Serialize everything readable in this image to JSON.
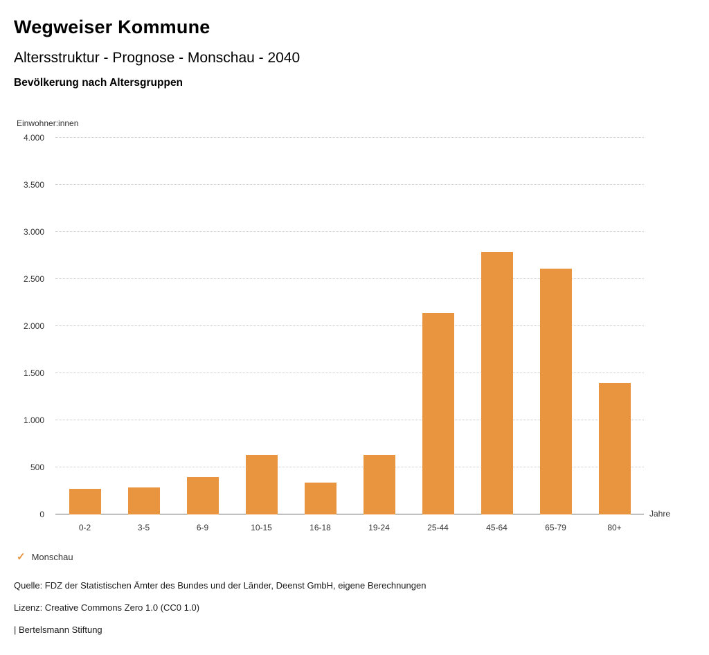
{
  "header": {
    "title": "Wegweiser Kommune",
    "subtitle": "Altersstruktur - Prognose - Monschau - 2040",
    "chart_heading": "Bevölkerung nach Altersgruppen"
  },
  "chart_data": {
    "type": "bar",
    "title": "Bevölkerung nach Altersgruppen",
    "ylabel": "Einwohner:innen",
    "xlabel": "Jahre",
    "categories": [
      "0-2",
      "3-5",
      "6-9",
      "10-15",
      "16-18",
      "19-24",
      "25-44",
      "45-64",
      "65-79",
      "80+"
    ],
    "series": [
      {
        "name": "Monschau",
        "values": [
          270,
          290,
          400,
          630,
          340,
          630,
          2140,
          2790,
          2610,
          1400
        ]
      }
    ],
    "ylim": [
      0,
      4000
    ],
    "ytick_step": 500,
    "grid": true,
    "bar_color": "#E9953F",
    "legend_position": "bottom"
  },
  "legend": {
    "items": [
      {
        "label": "Monschau",
        "color": "#E9953F",
        "marker": "check-icon",
        "check_glyph": "✓"
      }
    ]
  },
  "footer": {
    "source": "Quelle: FDZ der Statistischen Ämter des Bundes und der Länder, Deenst GmbH, eigene Berechnungen",
    "license": "Lizenz: Creative Commons Zero 1.0 (CC0 1.0)",
    "attribution": "| Bertelsmann Stiftung"
  }
}
